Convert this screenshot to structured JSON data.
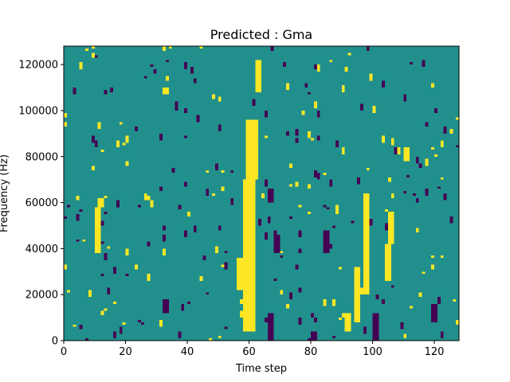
{
  "chart_data": {
    "type": "heatmap",
    "title": "Predicted : Gma",
    "xlabel": "Time step",
    "ylabel": "Frequency (Hz)",
    "xlim": [
      0,
      128
    ],
    "ylim": [
      0,
      128000
    ],
    "xticks": [
      0,
      20,
      40,
      60,
      80,
      100,
      120
    ],
    "yticks": [
      0,
      20000,
      40000,
      60000,
      80000,
      100000,
      120000
    ],
    "n_time_steps": 128,
    "n_freq_bins": 128,
    "colormap": {
      "low": "#440154",
      "mid": "#21908c",
      "high": "#fde725"
    },
    "background_level": "mid",
    "high_blocks": [
      {
        "x": [
          58,
          62
        ],
        "y": [
          4000,
          70000
        ]
      },
      {
        "x": [
          59,
          63
        ],
        "y": [
          70000,
          96000
        ]
      },
      {
        "x": [
          97,
          99
        ],
        "y": [
          20000,
          64000
        ]
      },
      {
        "x": [
          94,
          96
        ],
        "y": [
          8000,
          32000
        ]
      },
      {
        "x": [
          10,
          12
        ],
        "y": [
          38000,
          58000
        ]
      },
      {
        "x": [
          11,
          13
        ],
        "y": [
          58000,
          62000
        ]
      },
      {
        "x": [
          56,
          58
        ],
        "y": [
          22000,
          36000
        ]
      },
      {
        "x": [
          104,
          106
        ],
        "y": [
          26000,
          42000
        ]
      },
      {
        "x": [
          105,
          107
        ],
        "y": [
          42000,
          56000
        ]
      },
      {
        "x": [
          110,
          112
        ],
        "y": [
          78000,
          84000
        ]
      },
      {
        "x": [
          91,
          93
        ],
        "y": [
          4000,
          12000
        ]
      },
      {
        "x": [
          62,
          64
        ],
        "y": [
          108000,
          122000
        ]
      }
    ],
    "low_blocks": [
      {
        "x": [
          66,
          68
        ],
        "y": [
          0,
          12000
        ]
      },
      {
        "x": [
          68,
          70
        ],
        "y": [
          38000,
          46000
        ]
      },
      {
        "x": [
          80,
          82
        ],
        "y": [
          0,
          4000
        ]
      },
      {
        "x": [
          100,
          102
        ],
        "y": [
          0,
          12000
        ]
      },
      {
        "x": [
          119,
          121
        ],
        "y": [
          8000,
          16000
        ]
      },
      {
        "x": [
          32,
          34
        ],
        "y": [
          12000,
          18000
        ]
      },
      {
        "x": [
          84,
          86
        ],
        "y": [
          38000,
          48000
        ]
      },
      {
        "x": [
          66,
          68
        ],
        "y": [
          60000,
          66000
        ]
      }
    ],
    "random_seed": 7
  }
}
